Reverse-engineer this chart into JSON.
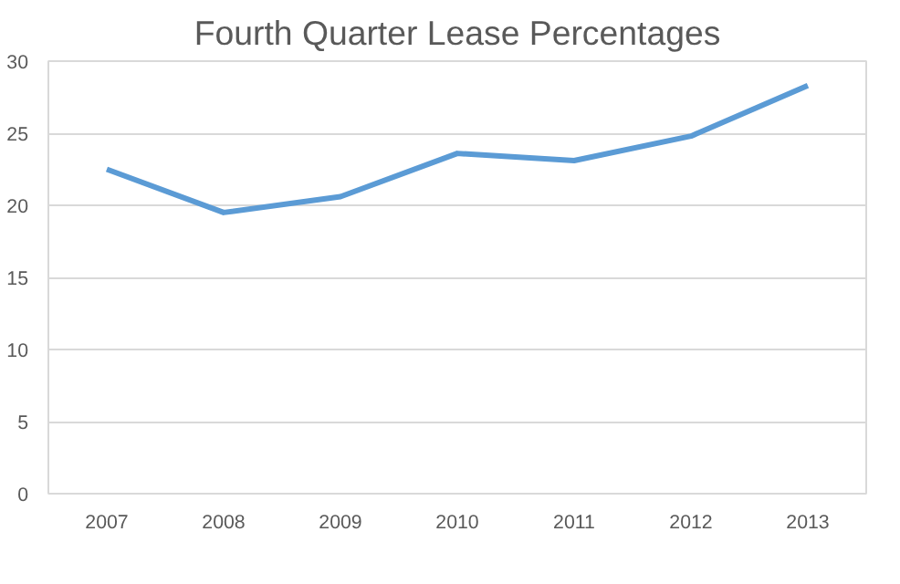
{
  "chart_data": {
    "type": "line",
    "title": "Fourth Quarter Lease Percentages",
    "categories": [
      "2007",
      "2008",
      "2009",
      "2010",
      "2011",
      "2012",
      "2013"
    ],
    "series": [
      {
        "color": "#5b9bd5",
        "values": [
          22.5,
          19.5,
          20.6,
          23.6,
          23.1,
          24.8,
          28.3
        ]
      }
    ],
    "ylim": [
      0,
      30
    ],
    "yticks": [
      0,
      5,
      10,
      15,
      20,
      25,
      30
    ],
    "grid": "y",
    "marker": "none",
    "line_style": "solid"
  }
}
